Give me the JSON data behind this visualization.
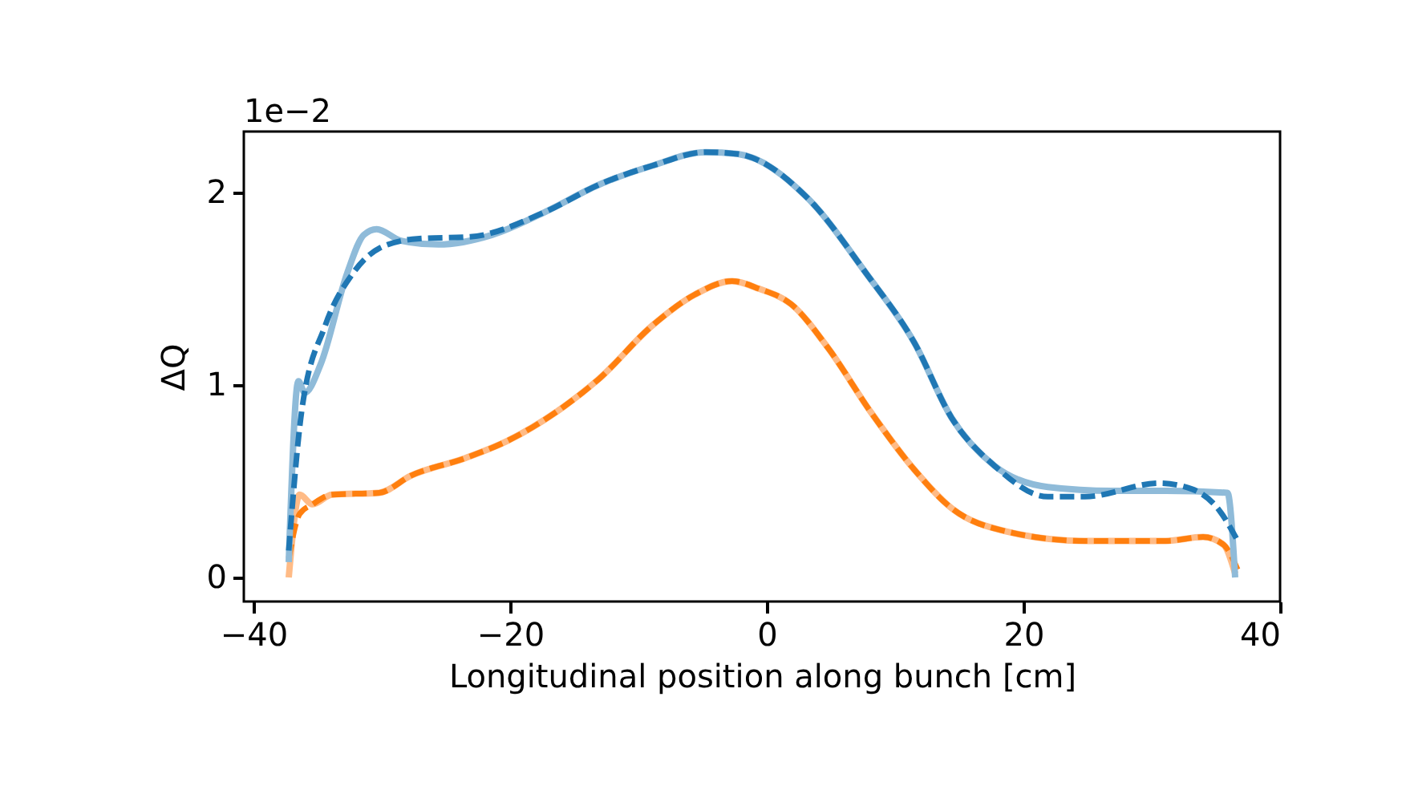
{
  "chart_data": {
    "type": "line",
    "xlabel": "Longitudinal position along bunch [cm]",
    "ylabel": "ΔQ",
    "annotations": [
      "1e−2"
    ],
    "xlim": [
      -40.75,
      40
    ],
    "xticks": [
      {
        "value": -40,
        "label": "−40"
      },
      {
        "value": -20,
        "label": "−20"
      },
      0,
      20,
      40
    ],
    "ylim": [
      -0.125,
      2.317
    ],
    "yticks": [
      0,
      1,
      2
    ],
    "grid": false,
    "series": [
      {
        "color": "#ffbb86",
        "line_style": "solid",
        "x": [
          -37.25,
          -36.4,
          -35.4,
          -33.9,
          -30.2,
          -27.7,
          -23.5,
          -20.2,
          -16.4,
          -13.1,
          -8.9,
          -5.6,
          -2.7,
          -0.6,
          1.9,
          4.8,
          8.1,
          11.5,
          14.4,
          18.6,
          24.8,
          31.1,
          34,
          35.6,
          36.5
        ],
        "values": [
          0,
          0.43,
          0.38,
          0.43,
          0.44,
          0.53,
          0.62,
          0.71,
          0.86,
          1.03,
          1.31,
          1.47,
          1.54,
          1.5,
          1.42,
          1.19,
          0.86,
          0.56,
          0.36,
          0.24,
          0.19,
          0.19,
          0.21,
          0.17,
          0.02
        ]
      },
      {
        "color": "#ff7f0e",
        "line_style": "dashed",
        "x": [
          -37.25,
          -36.4,
          -35.4,
          -33.9,
          -30.2,
          -27.7,
          -23.5,
          -20.2,
          -16.4,
          -13.1,
          -8.9,
          -5.6,
          -2.7,
          -0.6,
          1.9,
          4.8,
          8.1,
          11.5,
          14.4,
          18.6,
          24.8,
          31.1,
          34,
          35.6,
          36.7
        ],
        "values": [
          0.1,
          0.33,
          0.38,
          0.43,
          0.44,
          0.53,
          0.62,
          0.71,
          0.86,
          1.03,
          1.31,
          1.47,
          1.54,
          1.5,
          1.42,
          1.19,
          0.86,
          0.56,
          0.36,
          0.24,
          0.19,
          0.19,
          0.21,
          0.17,
          0.04
        ]
      },
      {
        "color": "#8fbbd9",
        "line_style": "solid",
        "x": [
          -37.25,
          -36.5,
          -36,
          -34.75,
          -32.7,
          -31.4,
          -30.4,
          -28.5,
          -25.6,
          -21.4,
          -17.25,
          -13.1,
          -8.9,
          -4.75,
          -2.25,
          3.2,
          7.75,
          11.5,
          14.4,
          17.75,
          21.9,
          26.9,
          31.1,
          35.9,
          36.5
        ],
        "values": [
          0.08,
          1.02,
          0.96,
          1.11,
          1.58,
          1.78,
          1.81,
          1.75,
          1.73,
          1.78,
          1.9,
          2.04,
          2.14,
          2.21,
          2.2,
          1.97,
          1.58,
          1.22,
          0.83,
          0.58,
          0.47,
          0.45,
          0.45,
          0.44,
          0
        ]
      },
      {
        "color": "#1f77b4",
        "line_style": "dashed",
        "x": [
          -37.25,
          -36.25,
          -34.4,
          -32.25,
          -30.2,
          -27.25,
          -23.1,
          -17.25,
          -13.1,
          -8.9,
          -4.75,
          -2.25,
          3.2,
          7.75,
          11.5,
          14.4,
          17.75,
          21.9,
          24.8,
          30.6,
          33.1,
          35.25,
          36.7
        ],
        "values": [
          0.14,
          0.86,
          1.31,
          1.58,
          1.71,
          1.76,
          1.77,
          1.9,
          2.04,
          2.14,
          2.21,
          2.2,
          1.97,
          1.58,
          1.22,
          0.83,
          0.58,
          0.42,
          0.42,
          0.49,
          0.46,
          0.35,
          0.19
        ]
      }
    ]
  }
}
